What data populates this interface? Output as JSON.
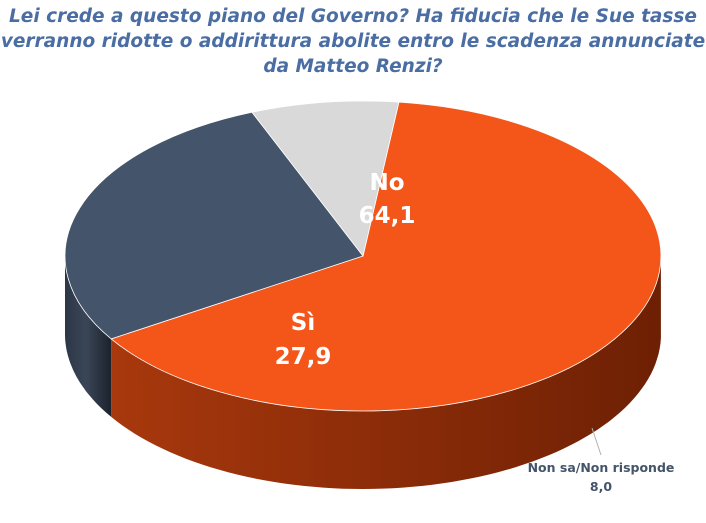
{
  "chart_data": {
    "type": "pie",
    "title_lines": [
      "Lei crede a questo piano del Governo? Ha fiducia che le Sue tasse",
      "verranno ridotte o addirittura abolite entro le scadenza annunciate",
      "da Matteo Renzi?"
    ],
    "slices": [
      {
        "label": "No",
        "value": 64.1,
        "value_text": "64,1",
        "color": "#f4561a",
        "side_color": "#8a2a06"
      },
      {
        "label": "Sì",
        "value": 27.9,
        "value_text": "27,9",
        "color": "#44546a",
        "side_color": "#262e3b"
      },
      {
        "label": "Non sa/Non risponde",
        "value": 8.0,
        "value_text": "8,0",
        "color": "#d9d9d9",
        "side_color": "#5a5a5a"
      }
    ],
    "legend": "none"
  }
}
